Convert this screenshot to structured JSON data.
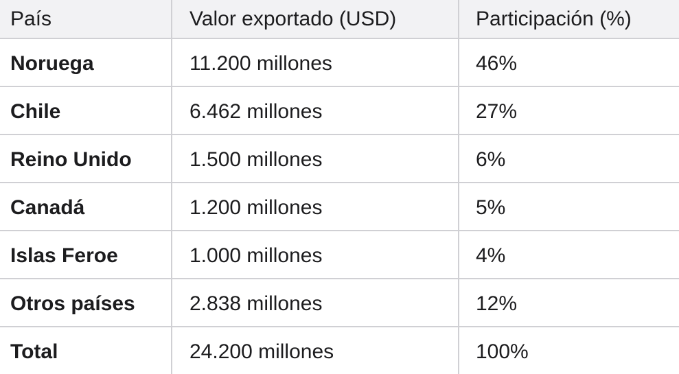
{
  "table": {
    "headers": [
      "País",
      "Valor exportado (USD)",
      "Participación (%)"
    ],
    "rows": [
      {
        "country": "Noruega",
        "value": "11.200 millones",
        "share": "46%"
      },
      {
        "country": "Chile",
        "value": "6.462 millones",
        "share": "27%"
      },
      {
        "country": "Reino Unido",
        "value": "1.500 millones",
        "share": "6%"
      },
      {
        "country": "Canadá",
        "value": "1.200 millones",
        "share": "5%"
      },
      {
        "country": "Islas Feroe",
        "value": "1.000 millones",
        "share": "4%"
      },
      {
        "country": "Otros países",
        "value": "2.838 millones",
        "share": "12%"
      },
      {
        "country": "Total",
        "value": "24.200 millones",
        "share": "100%"
      }
    ]
  }
}
